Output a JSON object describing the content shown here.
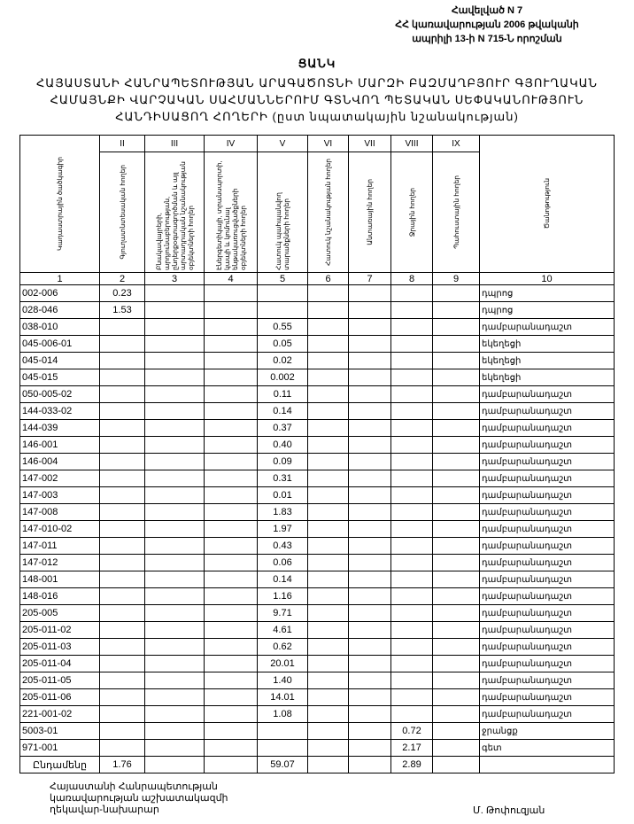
{
  "header": {
    "lines": [
      "Հավելված N 7",
      "ՀՀ կառավարության 2006 թվականի",
      "ապրիլի 13-ի N 715-Ն որոշման"
    ]
  },
  "title": "ՑԱՆԿ",
  "subtitle": [
    "ՀԱՅԱՍՏԱՆԻ ՀԱՆՐԱՊԵՏՈՒԹՅԱՆ ԱՐԱԳԱԾՈՏՆԻ ՄԱՐԶԻ ԲԱԶՄԱՂԲՅՈՒՐ ԳՅՈՒՂԱԿԱՆ",
    "ՀԱՄԱՅՆՔԻ ՎԱՐՉԱԿԱՆ ՍԱՀՄԱՆՆԵՐՈՒՄ  ԳՏՆՎՈՂ  ՊԵՏԱԿԱՆ ՍԵՓԱԿԱՆՈՒԹՅՈՒՆ",
    "ՀԱՆԴԻՍԱՑՈՂ ՀՈՂԵՐԻ   (ըստ նպատակային նշանակության)"
  ],
  "table": {
    "roman": [
      "",
      "II",
      "III",
      "IV",
      "V",
      "VI",
      "VII",
      "VIII",
      "IX",
      ""
    ],
    "headers": [
      "Կադաստրային ծածկագիր",
      "Գյուղատնտեսական հողեր",
      "Բնակավայրերի, արդյունաբերության, ընդերքօգտագործման և այլ արտադրական նշանակության օբյեկտների հողեր",
      "Էներգետիկայի, տրանսպորտի, կապի և կոմունալ ենթակառուցվածքների օբյեկտների հողեր",
      "Հատուկ պահպանվող տարածքների հողեր",
      "Հատուկ նշանակության հողեր",
      "Անտառային հողեր",
      "Ջրային հողեր",
      "Պահուստային հողեր",
      "Ծանոթություն"
    ],
    "numbers": [
      "1",
      "2",
      "3",
      "4",
      "5",
      "6",
      "7",
      "8",
      "9",
      "10"
    ],
    "rows": [
      [
        "002-006",
        "0.23",
        "",
        "",
        "",
        "",
        "",
        "",
        "",
        "դպրոց"
      ],
      [
        "028-046",
        "1.53",
        "",
        "",
        "",
        "",
        "",
        "",
        "",
        "դպրոց"
      ],
      [
        "038-010",
        "",
        "",
        "",
        "0.55",
        "",
        "",
        "",
        "",
        "դամբարանադաշտ"
      ],
      [
        "045-006-01",
        "",
        "",
        "",
        "0.05",
        "",
        "",
        "",
        "",
        "եկեղեցի"
      ],
      [
        "045-014",
        "",
        "",
        "",
        "0.02",
        "",
        "",
        "",
        "",
        "եկեղեցի"
      ],
      [
        "045-015",
        "",
        "",
        "",
        "0.002",
        "",
        "",
        "",
        "",
        "եկեղեցի"
      ],
      [
        "050-005-02",
        "",
        "",
        "",
        "0.11",
        "",
        "",
        "",
        "",
        "դամբարանադաշտ"
      ],
      [
        "144-033-02",
        "",
        "",
        "",
        "0.14",
        "",
        "",
        "",
        "",
        "դամբարանադաշտ"
      ],
      [
        "144-039",
        "",
        "",
        "",
        "0.37",
        "",
        "",
        "",
        "",
        "դամբարանադաշտ"
      ],
      [
        "146-001",
        "",
        "",
        "",
        "0.40",
        "",
        "",
        "",
        "",
        "դամբարանադաշտ"
      ],
      [
        "146-004",
        "",
        "",
        "",
        "0.09",
        "",
        "",
        "",
        "",
        "դամբարանադաշտ"
      ],
      [
        "147-002",
        "",
        "",
        "",
        "0.31",
        "",
        "",
        "",
        "",
        "դամբարանադաշտ"
      ],
      [
        "147-003",
        "",
        "",
        "",
        "0.01",
        "",
        "",
        "",
        "",
        "դամբարանադաշտ"
      ],
      [
        "147-008",
        "",
        "",
        "",
        "1.83",
        "",
        "",
        "",
        "",
        "դամբարանադաշտ"
      ],
      [
        "147-010-02",
        "",
        "",
        "",
        "1.97",
        "",
        "",
        "",
        "",
        "դամբարանադաշտ"
      ],
      [
        "147-011",
        "",
        "",
        "",
        "0.43",
        "",
        "",
        "",
        "",
        "դամբարանադաշտ"
      ],
      [
        "147-012",
        "",
        "",
        "",
        "0.06",
        "",
        "",
        "",
        "",
        "դամբարանադաշտ"
      ],
      [
        "148-001",
        "",
        "",
        "",
        "0.14",
        "",
        "",
        "",
        "",
        "դամբարանադաշտ"
      ],
      [
        "148-016",
        "",
        "",
        "",
        "1.16",
        "",
        "",
        "",
        "",
        "դամբարանադաշտ"
      ],
      [
        "205-005",
        "",
        "",
        "",
        "9.71",
        "",
        "",
        "",
        "",
        "դամբարանադաշտ"
      ],
      [
        "205-011-02",
        "",
        "",
        "",
        "4.61",
        "",
        "",
        "",
        "",
        "դամբարանադաշտ"
      ],
      [
        "205-011-03",
        "",
        "",
        "",
        "0.62",
        "",
        "",
        "",
        "",
        "դամբարանադաշտ"
      ],
      [
        "205-011-04",
        "",
        "",
        "",
        "20.01",
        "",
        "",
        "",
        "",
        "դամբարանադաշտ"
      ],
      [
        "205-011-05",
        "",
        "",
        "",
        "1.40",
        "",
        "",
        "",
        "",
        "դամբարանադաշտ"
      ],
      [
        "205-011-06",
        "",
        "",
        "",
        "14.01",
        "",
        "",
        "",
        "",
        "դամբարանադաշտ"
      ],
      [
        "221-001-02",
        "",
        "",
        "",
        "1.08",
        "",
        "",
        "",
        "",
        "դամբարանադաշտ"
      ],
      [
        "5003-01",
        "",
        "",
        "",
        "",
        "",
        "",
        "0.72",
        "",
        "ջրանցք"
      ],
      [
        "971-001",
        "",
        "",
        "",
        "",
        "",
        "",
        "2.17",
        "",
        "գետ"
      ]
    ],
    "total": [
      "Ընդամենը",
      "1.76",
      "",
      "",
      "59.07",
      "",
      "",
      "2.89",
      "",
      ""
    ]
  },
  "footer": {
    "lines": [
      "Հայաստանի Հանրապետության",
      "կառավարության աշխատակազմի",
      "ղեկավար-նախարար"
    ],
    "signature": "Մ. Թոփուզյան"
  }
}
